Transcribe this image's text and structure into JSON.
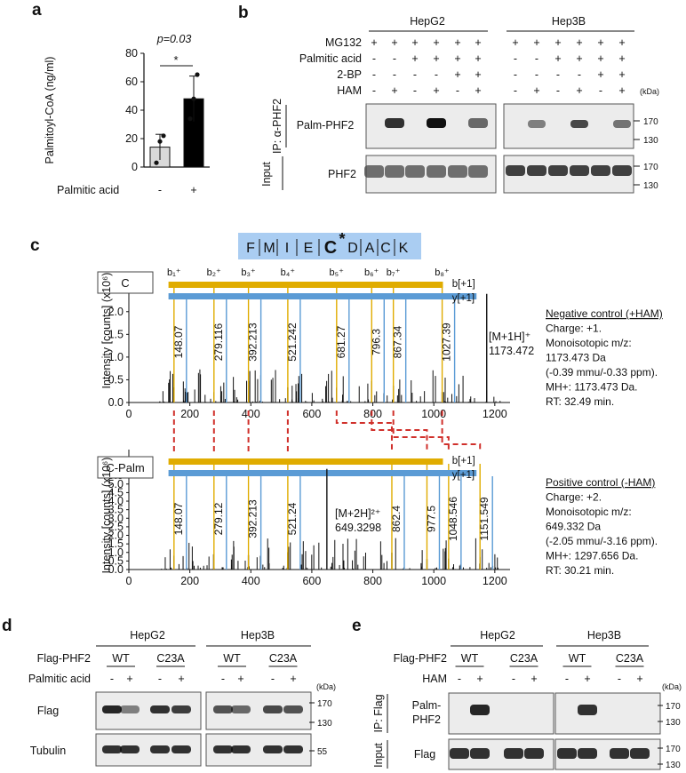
{
  "panel_labels": {
    "a": "a",
    "b": "b",
    "c": "c",
    "d": "d",
    "e": "e"
  },
  "panel_a": {
    "chart_data": {
      "type": "bar",
      "categories": [
        "-",
        "+"
      ],
      "values": [
        14,
        48
      ],
      "errors": [
        9,
        16
      ],
      "points": [
        [
          3,
          18,
          22
        ],
        [
          34,
          48,
          65
        ]
      ],
      "ylabel": "Palmitoyl-CoA (ng/ml)",
      "xlabel": "Palmitic acid",
      "ylim": [
        0,
        80
      ],
      "yticks": [
        0,
        20,
        40,
        60,
        80
      ],
      "pvalue": "p=0.03",
      "sig": "*",
      "colors": [
        "#d9d9d9",
        "#000000"
      ]
    }
  },
  "panel_b": {
    "cells": [
      "HepG2",
      "Hep3B"
    ],
    "rows": [
      {
        "label": "MG132",
        "signs": [
          "+",
          "+",
          "+",
          "+",
          "+",
          "+"
        ]
      },
      {
        "label": "Palmitic acid",
        "signs": [
          "-",
          "-",
          "+",
          "+",
          "+",
          "+"
        ]
      },
      {
        "label": "2-BP",
        "signs": [
          "-",
          "-",
          "-",
          "-",
          "+",
          "+"
        ]
      },
      {
        "label": "HAM",
        "signs": [
          "-",
          "+",
          "-",
          "+",
          "-",
          "+"
        ]
      }
    ],
    "kda": "(kDa)",
    "ip_label": "IP: α-PHF2",
    "input_label": "Input",
    "blot1": "Palm-PHF2",
    "blot2": "PHF2",
    "mw": [
      "170",
      "130"
    ]
  },
  "panel_c": {
    "seq": [
      "F",
      "M",
      "I",
      "E",
      "C",
      "D",
      "A",
      "C",
      "K"
    ],
    "star": "*",
    "ylabel": "Intensity [counts] (x10⁶)",
    "b_ions": [
      "b₁⁺",
      "b₂⁺",
      "b₃⁺",
      "b₄⁺",
      "b₅⁺",
      "b₆⁺",
      "b₇⁺",
      "b₈⁺"
    ],
    "b_label": "b[+1]",
    "y_label": "y[+1]",
    "top": {
      "tag": "C",
      "chart_data": {
        "type": "bar",
        "xlim": [
          0,
          1250
        ],
        "ylim": [
          0,
          2.7
        ],
        "xticks": [
          0,
          200,
          400,
          600,
          800,
          1000,
          1200
        ],
        "yticks": [
          "0.0",
          "0.5",
          "1.0",
          "1.5",
          "2.0",
          "2.5"
        ],
        "peak_labels": [
          "148.07",
          "279.116",
          "392.213",
          "521.242",
          "681.27",
          "796.3",
          "867.34",
          "1027.39"
        ],
        "peak_x": [
          148.07,
          279.116,
          392.213,
          521.242,
          681.27,
          796.3,
          867.34,
          1027.39
        ],
        "precursor": {
          "label": "[M+1H]⁺",
          "mz": "1173.472",
          "x": 1173.472,
          "y": 2.6
        }
      },
      "info": [
        "Negative control (+HAM)",
        "Charge: +1.",
        "Monoisotopic m/z:",
        "1173.473 Da",
        "(-0.39 mmu/-0.33 ppm).",
        "MH+: 1173.473 Da.",
        "RT: 32.49 min."
      ]
    },
    "bottom": {
      "tag": "C-Palm",
      "chart_data": {
        "type": "bar",
        "xlim": [
          0,
          1250
        ],
        "ylim": [
          0,
          6.6
        ],
        "xticks": [
          0,
          200,
          400,
          600,
          800,
          1000,
          1200
        ],
        "yticks": [
          "0.0",
          "0.5",
          "1.0",
          "1.5",
          "2.0",
          "2.5",
          "3.0",
          "3.5",
          "4.0",
          "4.5",
          "5.0",
          "5.5",
          "6.0"
        ],
        "peak_labels": [
          "148.07",
          "279.12",
          "392.213",
          "521.24",
          "862.4",
          "977.5",
          "1048.546",
          "1151.549"
        ],
        "peak_x": [
          148.07,
          279.12,
          392.213,
          521.24,
          862.4,
          977.5,
          1048.546,
          1151.549
        ],
        "precursor": {
          "label": "[M+2H]²⁺",
          "mz": "649.3298",
          "x": 649.33,
          "y": 6.4
        }
      },
      "info": [
        "Positive control (-HAM)",
        "Charge: +2.",
        "Monoisotopic m/z:",
        "649.332 Da",
        "(-2.05 mmu/-3.16 ppm).",
        "MH+: 1297.656 Da.",
        "RT: 30.21 min."
      ]
    }
  },
  "panel_d": {
    "cells": [
      "HepG2",
      "Hep3B"
    ],
    "flag_phf2": "Flag-PHF2",
    "groups": [
      "WT",
      "C23A",
      "WT",
      "C23A"
    ],
    "palmitic": "Palmitic acid",
    "signs": [
      "-",
      "+",
      "-",
      "+",
      "-",
      "+",
      "-",
      "+"
    ],
    "kda": "(kDa)",
    "blot1": "Flag",
    "blot2": "Tubulin",
    "mw1": [
      "170",
      "130"
    ],
    "mw2": "55"
  },
  "panel_e": {
    "cells": [
      "HepG2",
      "Hep3B"
    ],
    "flag_phf2": "Flag-PHF2",
    "groups": [
      "WT",
      "C23A",
      "WT",
      "C23A"
    ],
    "ham": "HAM",
    "signs": [
      "-",
      "+",
      "-",
      "+",
      "-",
      "+",
      "-",
      "+"
    ],
    "kda": "(kDa)",
    "ip_label": "IP: Flag",
    "input_label": "Input",
    "blot1a": "Palm-",
    "blot1b": "PHF2",
    "blot2": "Flag",
    "mw": [
      "170",
      "130"
    ]
  },
  "colors": {
    "b_ion": "#e0ac00",
    "y_ion": "#5b9bd5",
    "mass_label": "#d0302b",
    "seq_box": "#aacdf2",
    "link": "#d0302b"
  }
}
